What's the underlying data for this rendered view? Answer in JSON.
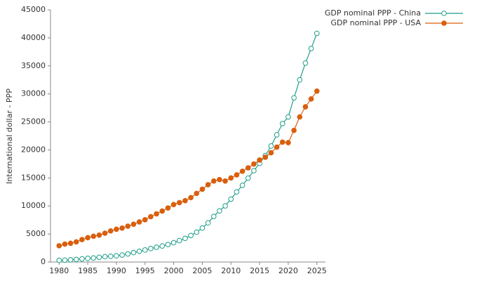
{
  "chart_data": {
    "type": "line",
    "y_label": "International dollar - PPP",
    "x": [
      1980,
      1981,
      1982,
      1983,
      1984,
      1985,
      1986,
      1987,
      1988,
      1989,
      1990,
      1991,
      1992,
      1993,
      1994,
      1995,
      1996,
      1997,
      1998,
      1999,
      2000,
      2001,
      2002,
      2003,
      2004,
      2005,
      2006,
      2007,
      2008,
      2009,
      2010,
      2011,
      2012,
      2013,
      2014,
      2015,
      2016,
      2017,
      2018,
      2019,
      2020,
      2021,
      2022,
      2023,
      2024,
      2025
    ],
    "series": [
      {
        "name": "GDP nominal PPP - China",
        "color": "#1f9e89",
        "marker": "hollow",
        "values": [
          300,
          340,
          400,
          460,
          560,
          660,
          730,
          840,
          960,
          1030,
          1100,
          1250,
          1450,
          1680,
          1920,
          2150,
          2400,
          2640,
          2860,
          3120,
          3450,
          3820,
          4220,
          4730,
          5330,
          6070,
          6990,
          8140,
          9120,
          10020,
          11230,
          12510,
          13690,
          14970,
          16300,
          17600,
          19000,
          20700,
          22700,
          24700,
          25900,
          29300,
          32500,
          35500,
          38100,
          40800
        ]
      },
      {
        "name": "GDP nominal PPP - USA",
        "color": "#d95f0e",
        "marker": "filled",
        "values": [
          2900,
          3200,
          3350,
          3600,
          4000,
          4350,
          4600,
          4800,
          5150,
          5550,
          5850,
          6050,
          6400,
          6750,
          7150,
          7550,
          8100,
          8600,
          9100,
          9650,
          10250,
          10600,
          10950,
          11500,
          12250,
          13000,
          13800,
          14450,
          14700,
          14450,
          15000,
          15550,
          16200,
          16800,
          17500,
          18200,
          18700,
          19500,
          20500,
          21400,
          21300,
          23500,
          25900,
          27700,
          29100,
          30500
        ]
      }
    ],
    "xlim": [
      1978.5,
      2026.5
    ],
    "xticks": [
      1980,
      1985,
      1990,
      1995,
      2000,
      2005,
      2010,
      2015,
      2020,
      2025
    ],
    "ylim": [
      0,
      45000
    ],
    "yticks": [
      0,
      5000,
      10000,
      15000,
      20000,
      25000,
      30000,
      35000,
      40000,
      45000
    ],
    "legend": "top-right"
  }
}
